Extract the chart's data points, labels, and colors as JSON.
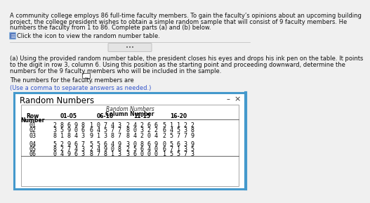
{
  "main_text_line1": "A community college employs 86 full-time faculty members. To gain the faculty’s opinions about an upcoming building",
  "main_text_line2": "project, the college president wishes to obtain a simple random sample that will consist of 9 faculty members. He",
  "main_text_line3": "numbers the faculty from 1 to 86. Complete parts (a) and (b) below.",
  "click_text": "Click the icon to view the random number table.",
  "part_a_line1": "(a) Using the provided random number table, the president closes his eyes and drops his ink pen on the table. It points",
  "part_a_line2": "to the digit in row 3, column 6. Using this position as the starting point and proceeding downward, determine the",
  "part_a_line3": "numbers for the 9 faculty members who will be included in the sample.",
  "answer_text": "The numbers for the faculty members are",
  "hint_text": "(Use a comma to separate answers as needed.)",
  "panel_title": "Random Numbers",
  "table_header_top": "Random Numbers",
  "table_header_col": "Column Number",
  "col_headers": [
    "Row\nNumber",
    "01-05",
    "06-10",
    "11-15",
    "16-20"
  ],
  "rows": [
    [
      "01",
      "2 8 6 9 8",
      "1 0 7 4 3",
      "2 4 2 6 6",
      "5 1 1 2 2"
    ],
    [
      "02",
      "3 5 9 0 6",
      "6 4 5 7 7",
      "8 0 3 2 2",
      "6 4 5 3 8"
    ],
    [
      "03",
      "8 1 8 4 3",
      "9 1 3 8 7",
      "8 4 2 0 4",
      "2 5 7 7 9"
    ],
    [
      "04",
      "5 2 9 6 7",
      "5 5 6 4 9",
      "3 0 8 6 9",
      "0 5 6 3 9"
    ],
    [
      "05",
      "8 2 7 4 3",
      "2 4 9 0 8",
      "2 5 6 4 0",
      "6 7 1 3 5"
    ],
    [
      "06",
      "0 4 9 6 3",
      "8 7 8 1 3",
      "3 6 0 0 0",
      "1 5 5 7 3"
    ]
  ],
  "bg_color": "#f0f0f0",
  "panel_bg": "#ffffff",
  "panel_border": "#4499cc",
  "icon_color": "#5577bb",
  "hint_color": "#3355cc",
  "text_fontsize": 6.0,
  "bold_fontsize": 6.0,
  "table_fontsize": 6.0,
  "header_fontsize": 5.5
}
